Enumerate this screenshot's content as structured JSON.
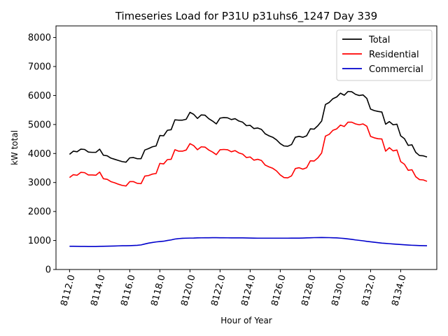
{
  "chart_data": {
    "type": "line",
    "title": "Timeseries Load for P31U p31uhs6_1247  Day 339",
    "xlabel": "Hour of Year",
    "ylabel": "kW total",
    "xlim": [
      8111.1,
      8136.4
    ],
    "ylim": [
      0,
      8400
    ],
    "xticks": [
      8112,
      8114,
      8116,
      8118,
      8120,
      8122,
      8124,
      8126,
      8128,
      8130,
      8132,
      8134
    ],
    "xtick_labels": [
      "8112.0",
      "8114.0",
      "8116.0",
      "8118.0",
      "8120.0",
      "8122.0",
      "8124.0",
      "8126.0",
      "8128.0",
      "8130.0",
      "8132.0",
      "8134.0"
    ],
    "yticks": [
      0,
      1000,
      2000,
      3000,
      4000,
      5000,
      6000,
      7000,
      8000
    ],
    "ytick_labels": [
      "0",
      "1000",
      "2000",
      "3000",
      "4000",
      "5000",
      "6000",
      "7000",
      "8000"
    ],
    "x_start": 8112,
    "x_step": 0.25,
    "legend_position": "top-right",
    "grid": false,
    "series": [
      {
        "name": "Total",
        "color": "#000000",
        "values": [
          3970,
          4080,
          4060,
          4150,
          4140,
          4050,
          4040,
          4040,
          4150,
          3940,
          3920,
          3840,
          3800,
          3760,
          3720,
          3700,
          3850,
          3860,
          3820,
          3820,
          4120,
          4170,
          4230,
          4260,
          4620,
          4610,
          4800,
          4820,
          5160,
          5150,
          5150,
          5180,
          5420,
          5350,
          5210,
          5330,
          5320,
          5200,
          5120,
          5020,
          5220,
          5240,
          5230,
          5170,
          5200,
          5120,
          5080,
          4960,
          4970,
          4860,
          4880,
          4830,
          4680,
          4610,
          4560,
          4470,
          4340,
          4260,
          4250,
          4310,
          4560,
          4590,
          4560,
          4610,
          4850,
          4840,
          4960,
          5120,
          5690,
          5760,
          5890,
          5950,
          6080,
          6010,
          6140,
          6130,
          6040,
          6000,
          6020,
          5900,
          5530,
          5480,
          5450,
          5430,
          5010,
          5100,
          4990,
          5010,
          4610,
          4510,
          4280,
          4300,
          4040,
          3930,
          3920,
          3880
        ]
      },
      {
        "name": "Residential",
        "color": "#ff0000",
        "values": [
          3170,
          3270,
          3250,
          3350,
          3340,
          3260,
          3260,
          3250,
          3360,
          3130,
          3110,
          3030,
          2990,
          2940,
          2900,
          2880,
          3030,
          3030,
          2970,
          2960,
          3220,
          3240,
          3290,
          3310,
          3660,
          3640,
          3790,
          3800,
          4130,
          4080,
          4080,
          4120,
          4340,
          4270,
          4130,
          4230,
          4220,
          4120,
          4050,
          3960,
          4130,
          4140,
          4130,
          4060,
          4100,
          4020,
          3980,
          3860,
          3880,
          3770,
          3800,
          3760,
          3600,
          3540,
          3490,
          3400,
          3260,
          3170,
          3160,
          3230,
          3480,
          3510,
          3460,
          3510,
          3750,
          3740,
          3850,
          4020,
          4600,
          4660,
          4800,
          4850,
          4980,
          4930,
          5080,
          5080,
          5020,
          4990,
          5020,
          4940,
          4590,
          4540,
          4510,
          4500,
          4080,
          4200,
          4090,
          4120,
          3720,
          3630,
          3420,
          3440,
          3200,
          3100,
          3090,
          3040
        ]
      },
      {
        "name": "Commercial",
        "color": "#0000cc",
        "values": [
          800,
          800,
          798,
          796,
          795,
          792,
          792,
          793,
          797,
          800,
          803,
          806,
          810,
          815,
          818,
          820,
          823,
          828,
          835,
          848,
          880,
          910,
          930,
          950,
          965,
          975,
          1000,
          1020,
          1050,
          1065,
          1075,
          1080,
          1083,
          1085,
          1090,
          1092,
          1094,
          1095,
          1096,
          1096,
          1095,
          1093,
          1092,
          1090,
          1090,
          1090,
          1090,
          1088,
          1085,
          1082,
          1080,
          1080,
          1080,
          1080,
          1080,
          1080,
          1080,
          1080,
          1080,
          1082,
          1082,
          1082,
          1085,
          1090,
          1095,
          1098,
          1100,
          1102,
          1100,
          1098,
          1095,
          1090,
          1080,
          1070,
          1055,
          1040,
          1020,
          1005,
          990,
          970,
          955,
          940,
          925,
          910,
          900,
          890,
          880,
          870,
          862,
          853,
          844,
          836,
          830,
          826,
          822,
          818
        ]
      }
    ]
  }
}
